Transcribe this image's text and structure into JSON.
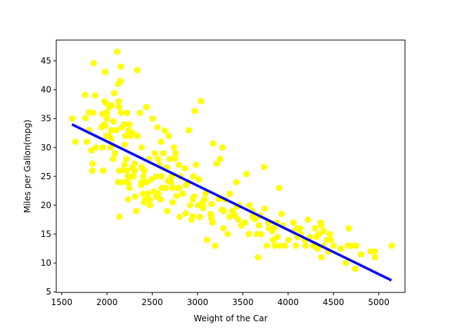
{
  "chart_data": {
    "type": "scatter",
    "title": "",
    "xlabel": "Weight of the Car",
    "ylabel": "Miles per Gallon(mpg)",
    "xlim": [
      1440,
      5290
    ],
    "ylim": [
      4.9,
      48.6
    ],
    "xticks": [
      1500,
      2000,
      2500,
      3000,
      3500,
      4000,
      4500,
      5000
    ],
    "yticks": [
      5,
      10,
      15,
      20,
      25,
      30,
      35,
      40,
      45
    ],
    "grid": false,
    "legend": "none",
    "colors": {
      "points": "#ffff00",
      "line": "#0000ff"
    },
    "regression_line": {
      "x": [
        1613,
        5140
      ],
      "y": [
        34.0,
        7.0
      ]
    },
    "points": [
      [
        1613,
        35.0
      ],
      [
        1649,
        31.0
      ],
      [
        1755,
        39.1
      ],
      [
        1760,
        35.1
      ],
      [
        1773,
        31.0
      ],
      [
        1795,
        33.0
      ],
      [
        1800,
        36.1
      ],
      [
        1825,
        29.5
      ],
      [
        1835,
        26.0
      ],
      [
        1836,
        27.2
      ],
      [
        1845,
        36.0
      ],
      [
        1850,
        44.6
      ],
      [
        1867,
        39.0
      ],
      [
        1875,
        30.0
      ],
      [
        1937,
        33.5
      ],
      [
        1945,
        35.8
      ],
      [
        1950,
        30.0
      ],
      [
        1955,
        26.0
      ],
      [
        1965,
        34.0
      ],
      [
        1968,
        38.0
      ],
      [
        1975,
        43.1
      ],
      [
        1980,
        33.8
      ],
      [
        1985,
        37.7
      ],
      [
        1990,
        32.0
      ],
      [
        1995,
        36.0
      ],
      [
        2000,
        35.0
      ],
      [
        2020,
        32.0
      ],
      [
        2025,
        37.0
      ],
      [
        2035,
        30.0
      ],
      [
        2045,
        31.5
      ],
      [
        2050,
        37.3
      ],
      [
        2065,
        28.0
      ],
      [
        2070,
        34.5
      ],
      [
        2075,
        39.4
      ],
      [
        2085,
        29.0
      ],
      [
        2100,
        33.0
      ],
      [
        2110,
        46.6
      ],
      [
        2120,
        41.0
      ],
      [
        2125,
        38.0
      ],
      [
        2130,
        37.0
      ],
      [
        2135,
        26.0
      ],
      [
        2135,
        18.0
      ],
      [
        2145,
        41.5
      ],
      [
        2150,
        44.0
      ],
      [
        2155,
        36.0
      ],
      [
        2155,
        26.0
      ],
      [
        2160,
        33.5
      ],
      [
        2164,
        24.0
      ],
      [
        2188,
        34.0
      ],
      [
        2190,
        30.5
      ],
      [
        2200,
        32.0
      ],
      [
        2210,
        28.0
      ],
      [
        2214,
        26.0
      ],
      [
        2220,
        36.0
      ],
      [
        2220,
        24.0
      ],
      [
        2226,
        25.0
      ],
      [
        2230,
        21.0
      ],
      [
        2234,
        33.0
      ],
      [
        2245,
        23.0
      ],
      [
        2246,
        34.0
      ],
      [
        2255,
        32.0
      ],
      [
        2265,
        25.0
      ],
      [
        2275,
        26.5
      ],
      [
        2278,
        32.5
      ],
      [
        2290,
        25.0
      ],
      [
        2300,
        26.0
      ],
      [
        2310,
        21.5
      ],
      [
        2320,
        19.0
      ],
      [
        2330,
        43.4
      ],
      [
        2335,
        32.0
      ],
      [
        2360,
        36.0
      ],
      [
        2375,
        23.5
      ],
      [
        2379,
        24.0
      ],
      [
        2380,
        30.0
      ],
      [
        2395,
        22.0
      ],
      [
        2400,
        25.0
      ],
      [
        2405,
        20.5
      ],
      [
        2408,
        26.0
      ],
      [
        2420,
        21.0
      ],
      [
        2430,
        37.0
      ],
      [
        2434,
        24.0
      ],
      [
        2450,
        22.0
      ],
      [
        2464,
        28.0
      ],
      [
        2472,
        21.0
      ],
      [
        2490,
        24.5
      ],
      [
        2500,
        35.0
      ],
      [
        2515,
        22.4
      ],
      [
        2525,
        29.0
      ],
      [
        2542,
        25.0
      ],
      [
        2545,
        21.5
      ],
      [
        2556,
        33.5
      ],
      [
        2560,
        28.0
      ],
      [
        2575,
        27.0
      ],
      [
        2587,
        21.0
      ],
      [
        2595,
        31.0
      ],
      [
        2600,
        25.0
      ],
      [
        2615,
        23.0
      ],
      [
        2620,
        29.0
      ],
      [
        2635,
        32.9
      ],
      [
        2640,
        26.4
      ],
      [
        2648,
        23.0
      ],
      [
        2660,
        19.0
      ],
      [
        2670,
        24.2
      ],
      [
        2678,
        32.0
      ],
      [
        2690,
        28.0
      ],
      [
        2700,
        24.0
      ],
      [
        2711,
        25.0
      ],
      [
        2720,
        23.0
      ],
      [
        2735,
        30.0
      ],
      [
        2745,
        28.1
      ],
      [
        2755,
        29.0
      ],
      [
        2765,
        21.6
      ],
      [
        2790,
        27.0
      ],
      [
        2795,
        23.0
      ],
      [
        2800,
        18.0
      ],
      [
        2808,
        25.0
      ],
      [
        2833,
        22.0
      ],
      [
        2855,
        26.4
      ],
      [
        2868,
        18.6
      ],
      [
        2890,
        24.0
      ],
      [
        2900,
        33.0
      ],
      [
        2914,
        20.0
      ],
      [
        2930,
        17.5
      ],
      [
        2945,
        18.1
      ],
      [
        2950,
        25.0
      ],
      [
        2957,
        21.5
      ],
      [
        2965,
        36.3
      ],
      [
        2979,
        27.0
      ],
      [
        3003,
        20.0
      ],
      [
        3012,
        24.5
      ],
      [
        3021,
        18.0
      ],
      [
        3035,
        38.0
      ],
      [
        3057,
        20.5
      ],
      [
        3070,
        21.0
      ],
      [
        3085,
        22.0
      ],
      [
        3102,
        14.0
      ],
      [
        3139,
        18.5
      ],
      [
        3151,
        20.2
      ],
      [
        3160,
        17.0
      ],
      [
        3169,
        30.7
      ],
      [
        3190,
        13.0
      ],
      [
        3205,
        27.2
      ],
      [
        3245,
        28.0
      ],
      [
        3265,
        19.2
      ],
      [
        3270,
        30.0
      ],
      [
        3282,
        16.0
      ],
      [
        3288,
        19.0
      ],
      [
        3302,
        21.0
      ],
      [
        3329,
        15.0
      ],
      [
        3353,
        22.0
      ],
      [
        3380,
        19.0
      ],
      [
        3410,
        18.2
      ],
      [
        3425,
        24.0
      ],
      [
        3445,
        17.5
      ],
      [
        3460,
        20.0
      ],
      [
        3480,
        16.5
      ],
      [
        3520,
        17.0
      ],
      [
        3535,
        25.4
      ],
      [
        3563,
        15.0
      ],
      [
        3570,
        20.0
      ],
      [
        3605,
        18.0
      ],
      [
        3630,
        17.6
      ],
      [
        3651,
        15.0
      ],
      [
        3664,
        11.0
      ],
      [
        3672,
        16.5
      ],
      [
        3693,
        15.0
      ],
      [
        3730,
        26.6
      ],
      [
        3735,
        19.4
      ],
      [
        3761,
        13.0
      ],
      [
        3777,
        17.0
      ],
      [
        3785,
        16.0
      ],
      [
        3820,
        15.5
      ],
      [
        3830,
        14.0
      ],
      [
        3850,
        13.0
      ],
      [
        3870,
        17.0
      ],
      [
        3880,
        14.5
      ],
      [
        3897,
        23.0
      ],
      [
        3907,
        13.0
      ],
      [
        3925,
        18.5
      ],
      [
        3940,
        16.5
      ],
      [
        3962,
        13.0
      ],
      [
        4000,
        14.0
      ],
      [
        4054,
        17.0
      ],
      [
        4082,
        13.0
      ],
      [
        4096,
        16.0
      ],
      [
        4100,
        14.5
      ],
      [
        4129,
        16.0
      ],
      [
        4140,
        15.0
      ],
      [
        4190,
        13.0
      ],
      [
        4215,
        17.5
      ],
      [
        4237,
        14.5
      ],
      [
        4274,
        13.0
      ],
      [
        4294,
        16.0
      ],
      [
        4310,
        14.5
      ],
      [
        4335,
        15.0
      ],
      [
        4354,
        17.0
      ],
      [
        4360,
        16.5
      ],
      [
        4363,
        11.0
      ],
      [
        4382,
        13.0
      ],
      [
        4425,
        14.0
      ],
      [
        4440,
        12.0
      ],
      [
        4457,
        15.0
      ],
      [
        4464,
        14.0
      ],
      [
        4499,
        13.0
      ],
      [
        4633,
        10.0
      ],
      [
        4654,
        13.0
      ],
      [
        4668,
        16.0
      ],
      [
        4699,
        13.0
      ],
      [
        4735,
        9.0
      ],
      [
        4746,
        13.0
      ],
      [
        4906,
        12.0
      ],
      [
        4951,
        12.0
      ],
      [
        4955,
        11.0
      ],
      [
        5140,
        13.0
      ],
      [
        1990,
        36.1
      ],
      [
        2045,
        33.0
      ],
      [
        2120,
        24.0
      ],
      [
        2190,
        27.0
      ],
      [
        2230,
        23.9
      ],
      [
        2300,
        27.2
      ],
      [
        2380,
        26.6
      ],
      [
        2430,
        24.0
      ],
      [
        2470,
        20.0
      ],
      [
        2560,
        22.0
      ],
      [
        2600,
        23.0
      ],
      [
        2660,
        26.5
      ],
      [
        2720,
        20.5
      ],
      [
        2780,
        23.0
      ],
      [
        2870,
        23.5
      ],
      [
        2945,
        21.0
      ],
      [
        3060,
        19.5
      ],
      [
        3150,
        17.7
      ],
      [
        3230,
        21.1
      ],
      [
        3350,
        18.0
      ],
      [
        3430,
        19.8
      ],
      [
        3600,
        19.0
      ],
      [
        3690,
        18.2
      ],
      [
        3840,
        16.0
      ],
      [
        4060,
        15.5
      ],
      [
        4180,
        14.0
      ],
      [
        4320,
        12.5
      ],
      [
        4390,
        15.5
      ],
      [
        4580,
        12.5
      ],
      [
        4800,
        11.5
      ]
    ]
  }
}
